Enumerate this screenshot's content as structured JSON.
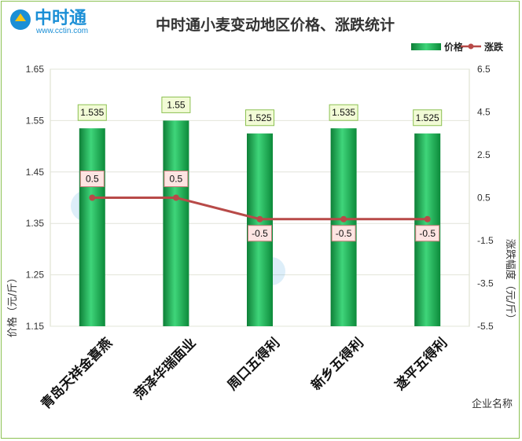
{
  "logo": {
    "name": "中时通",
    "url": "www.cctin.com"
  },
  "chart_data": {
    "type": "bar",
    "title": "中时通小麦变动地区价格、涨跌统计",
    "xlabel": "企业名称",
    "ylabel": "价格（元/斤）",
    "y2label": "涨跌幅度（元/斤）",
    "categories": [
      "青岛天祥金喜燕",
      "菏泽华瑞面业",
      "周口五得利",
      "新乡五得利",
      "遂平五得利"
    ],
    "series": [
      {
        "name": "价格",
        "type": "bar",
        "axis": "left",
        "color": "#1aa84f",
        "values": [
          1.535,
          1.55,
          1.525,
          1.535,
          1.525
        ]
      },
      {
        "name": "涨跌",
        "type": "line",
        "axis": "right",
        "color": "#b84a48",
        "values": [
          0.5,
          0.5,
          -0.5,
          -0.5,
          -0.5
        ]
      }
    ],
    "ylim": [
      1.15,
      1.65
    ],
    "yticks": [
      "1.15",
      "1.25",
      "1.35",
      "1.45",
      "1.55",
      "1.65"
    ],
    "y2lim": [
      -5.5,
      6.5
    ],
    "y2ticks": [
      "-5.5",
      "-3.5",
      "-1.5",
      "0.5",
      "2.5",
      "4.5",
      "6.5"
    ],
    "bar_labels": [
      "1.535",
      "1.55",
      "1.525",
      "1.535",
      "1.525"
    ],
    "line_labels": [
      "0.5",
      "0.5",
      "-0.5",
      "-0.5",
      "-0.5"
    ],
    "legend_position": "top-right",
    "grid": true
  }
}
